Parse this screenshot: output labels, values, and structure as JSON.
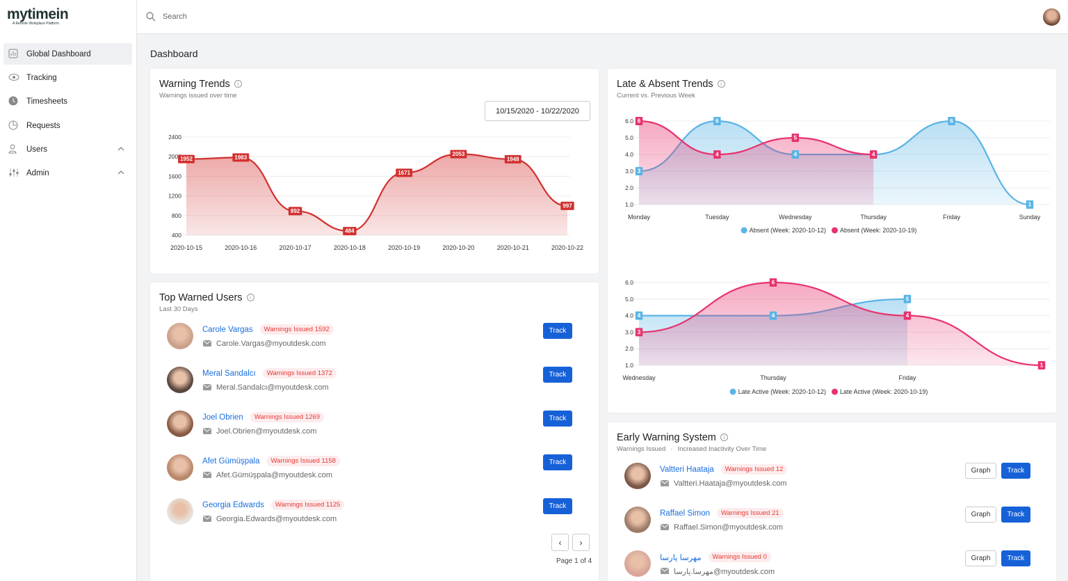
{
  "brand": {
    "name": "mytimein",
    "tagline": "A Remote Workplace Platform"
  },
  "search": {
    "placeholder": "Search"
  },
  "sidebar": [
    "Global Dashboard",
    "Tracking",
    "Timesheets",
    "Requests",
    "Users",
    "Admin"
  ],
  "page_title": "Dashboard",
  "date_range": "10/15/2020 - 10/22/2020",
  "chart_data": [
    {
      "type": "line",
      "title": "Warning Trends",
      "subtitle": "Warnings issued over time",
      "categories": [
        "2020-10-15",
        "2020-10-16",
        "2020-10-17",
        "2020-10-18",
        "2020-10-19",
        "2020-10-20",
        "2020-10-21",
        "2020-10-22"
      ],
      "values": [
        1952,
        1983,
        892,
        484,
        1671,
        2053,
        1948,
        997
      ],
      "color": "#d32f2f",
      "ylim": [
        400,
        2400
      ],
      "yticks": [
        400,
        800,
        1200,
        1600,
        2000,
        2400
      ],
      "grid": true
    },
    {
      "type": "line",
      "title": "Late & Absent Trends",
      "subtitle": "Current vs. Previous Week",
      "categories": [
        "Monday",
        "Tuesday",
        "Wednesday",
        "Thursday",
        "Friday",
        "Sunday"
      ],
      "series": [
        {
          "name": "Absent (Week: 2020-10-12)",
          "color": "#5ab4e5",
          "values": [
            3,
            6,
            4,
            4,
            6,
            1
          ]
        },
        {
          "name": "Absent (Week: 2020-10-19)",
          "color": "#e8336d",
          "values": [
            6,
            4,
            5,
            4,
            null,
            null
          ]
        }
      ],
      "ylim": [
        1,
        6
      ],
      "yticks": [
        {
          "value": 1,
          "label": "1.0"
        },
        {
          "value": 2,
          "label": "2.0"
        },
        {
          "value": 3,
          "label": "3.0"
        },
        {
          "value": 4,
          "label": "4.0"
        },
        {
          "value": 5,
          "label": "5.0"
        },
        {
          "value": 6,
          "label": "6.0"
        }
      ],
      "grid": true,
      "legend": "bottom"
    },
    {
      "type": "line",
      "categories": [
        "Wednesday",
        "Thursday",
        "Friday",
        null
      ],
      "series": [
        {
          "name": "Late Active (Week: 2020-10-12)",
          "color": "#5ab4e5",
          "values": [
            4,
            4,
            5,
            null
          ]
        },
        {
          "name": "Late Active (Week: 2020-10-19)",
          "color": "#e8336d",
          "values": [
            3,
            6,
            4,
            1
          ]
        }
      ],
      "ylim": [
        1,
        6
      ],
      "yticks": [
        {
          "value": 1,
          "label": "1.0"
        },
        {
          "value": 2,
          "label": "2.0"
        },
        {
          "value": 3,
          "label": "3.0"
        },
        {
          "value": 4,
          "label": "4.0"
        },
        {
          "value": 5,
          "label": "5.0"
        },
        {
          "value": 6,
          "label": "6.0"
        }
      ],
      "grid": true,
      "legend": "bottom"
    }
  ],
  "top_warned": {
    "title": "Top Warned Users",
    "subtitle": "Last 30 Days",
    "track_label": "Track",
    "pagination": "Page 1 of 4",
    "users": [
      {
        "name": "Carole Vargas",
        "badge": "Warnings Issued 1592",
        "email": "Carole.Vargas@myoutdesk.com"
      },
      {
        "name": "Meral Sandalcı",
        "badge": "Warnings Issued 1372",
        "email": "Meral.Sandalcı@myoutdesk.com"
      },
      {
        "name": "Joel Obrien",
        "badge": "Warnings Issued 1269",
        "email": "Joel.Obrien@myoutdesk.com"
      },
      {
        "name": "Afet Gümüşpala",
        "badge": "Warnings Issued 1158",
        "email": "Afet.Gümüşpala@myoutdesk.com"
      },
      {
        "name": "Georgia Edwards",
        "badge": "Warnings Issued 1125",
        "email": "Georgia.Edwards@myoutdesk.com"
      }
    ]
  },
  "early_warning": {
    "title": "Early Warning System",
    "tabs": [
      "Warnings Issued",
      "Increased Inactivity Over Time"
    ],
    "graph_label": "Graph",
    "track_label": "Track",
    "users": [
      {
        "name": "Valtteri Haataja",
        "badge": "Warnings Issued 12",
        "email": "Valtteri.Haataja@myoutdesk.com"
      },
      {
        "name": "Raffael Simon",
        "badge": "Warnings Issued 21",
        "email": "Raffael.Simon@myoutdesk.com"
      },
      {
        "name": "مهرسا پارسا",
        "badge": "Warnings Issued 0",
        "email": "مهرسا.پارسا@myoutdesk.com"
      }
    ]
  }
}
